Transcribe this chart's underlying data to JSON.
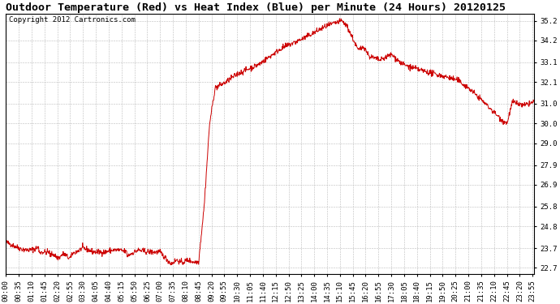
{
  "title": "Outdoor Temperature (Red) vs Heat Index (Blue) per Minute (24 Hours) 20120125",
  "copyright_text": "Copyright 2012 Cartronics.com",
  "y_ticks": [
    22.7,
    23.7,
    24.8,
    25.8,
    26.9,
    27.9,
    29.0,
    30.0,
    31.0,
    32.1,
    33.1,
    34.2,
    35.2
  ],
  "ylim": [
    22.4,
    35.55
  ],
  "background_color": "#ffffff",
  "grid_color": "#bbbbbb",
  "line_color_red": "#cc0000",
  "title_fontsize": 9.5,
  "copyright_fontsize": 6.5,
  "tick_label_fontsize": 6.5,
  "x_tick_interval": 35
}
